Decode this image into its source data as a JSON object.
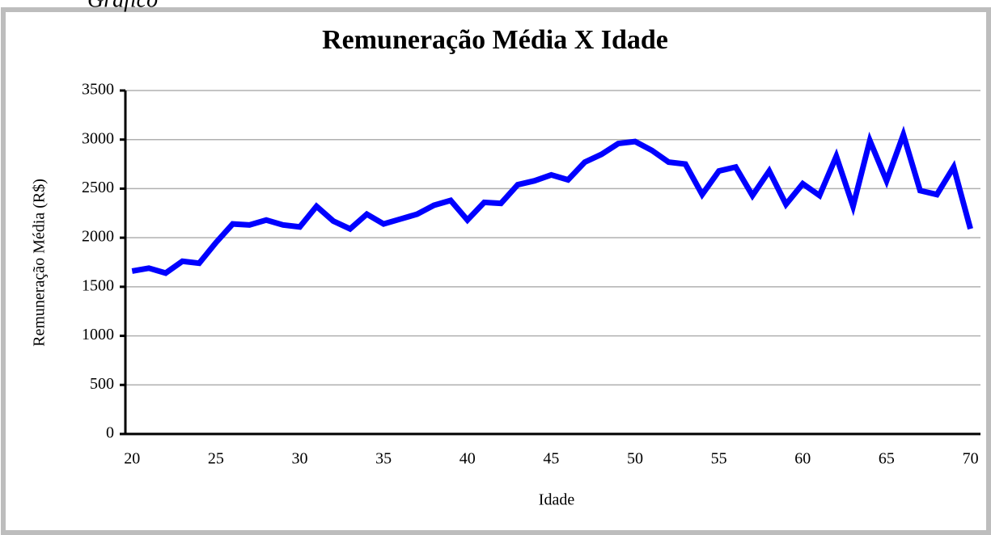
{
  "page_caption": "Gráfico",
  "chart_data": {
    "type": "line",
    "title": "Remuneração Média X Idade",
    "x_label": "Idade",
    "y_label": "Remuneração Média (R$)",
    "x": [
      20,
      21,
      22,
      23,
      24,
      25,
      26,
      27,
      28,
      29,
      30,
      31,
      32,
      33,
      34,
      35,
      36,
      37,
      38,
      39,
      40,
      41,
      42,
      43,
      44,
      45,
      46,
      47,
      48,
      49,
      50,
      51,
      52,
      53,
      54,
      55,
      56,
      57,
      58,
      59,
      60,
      61,
      62,
      63,
      64,
      65,
      66,
      67,
      68,
      69,
      70
    ],
    "series": [
      {
        "name": "Remuneração Média",
        "color": "#0000ff",
        "values": [
          1660,
          1690,
          1640,
          1760,
          1740,
          1950,
          2140,
          2130,
          2180,
          2130,
          2110,
          2320,
          2170,
          2090,
          2240,
          2140,
          2190,
          2240,
          2330,
          2380,
          2180,
          2360,
          2350,
          2540,
          2580,
          2640,
          2590,
          2770,
          2850,
          2960,
          2980,
          2890,
          2770,
          2750,
          2440,
          2680,
          2720,
          2430,
          2680,
          2340,
          2550,
          2430,
          2830,
          2320,
          2990,
          2580,
          3050,
          2480,
          2440,
          2720,
          2090
        ]
      }
    ],
    "xlim": [
      19.6,
      70.6
    ],
    "xticks": [
      20,
      25,
      30,
      35,
      40,
      45,
      50,
      55,
      60,
      65,
      70
    ],
    "ylim": [
      0,
      3500
    ],
    "yticks": [
      0,
      500,
      1000,
      1500,
      2000,
      2500,
      3000,
      3500
    ],
    "grid": true
  }
}
